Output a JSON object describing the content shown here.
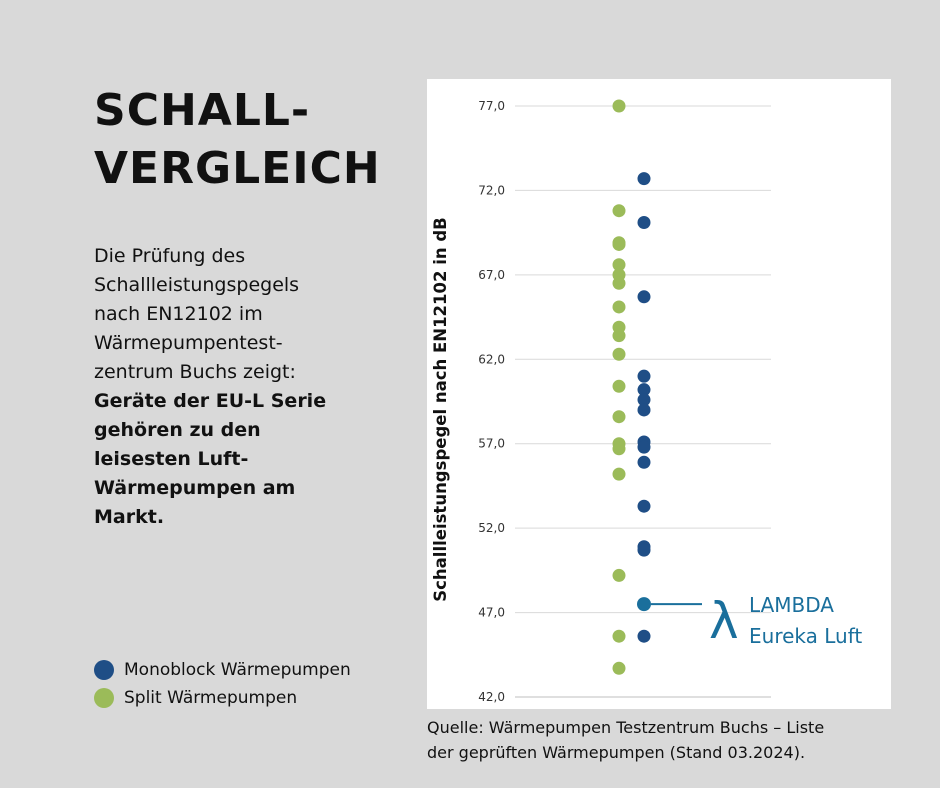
{
  "heading": {
    "line1": "SCHALL-",
    "line2": "VERGLEICH"
  },
  "description": {
    "lines": [
      "Die Prüfung des",
      "Schallleistungspegels",
      "nach EN12102 im",
      "Wärmepumpentest-",
      "zentrum Buchs zeigt:"
    ],
    "bold_lines": [
      "Geräte der EU-L Serie",
      "gehören zu den",
      "leisesten Luft-",
      "Wärmepumpen am",
      "Markt."
    ]
  },
  "legend": {
    "items": [
      {
        "label": "Monoblock Wärmepumpen",
        "color": "#1f4e86"
      },
      {
        "label": "Split Wärmepumpen",
        "color": "#9bbb59"
      }
    ]
  },
  "source": {
    "line1": "Quelle: Wärmepumpen Testzentrum Buchs – Liste",
    "line2": "der geprüften Wärmepumpen (Stand 03.2024)."
  },
  "colors": {
    "monoblock": "#1f4e86",
    "split": "#9bbb59",
    "highlight": "#1a6f9c",
    "background": "#d9d9d9"
  },
  "chart_data": {
    "type": "scatter",
    "ylabel": "Schallleistungspegel nach EN12102 in dB",
    "xlabel": "",
    "ylim": [
      42,
      77
    ],
    "yticks": [
      "42,0",
      "47,0",
      "52,0",
      "57,0",
      "62,0",
      "67,0",
      "72,0",
      "77,0"
    ],
    "grid": true,
    "series": [
      {
        "name": "Split Wärmepumpen",
        "values": [
          77.0,
          70.8,
          68.9,
          68.8,
          67.6,
          67.0,
          66.5,
          65.1,
          63.9,
          63.4,
          62.3,
          60.4,
          58.6,
          57.0,
          56.7,
          55.2,
          49.2,
          45.6,
          43.7
        ]
      },
      {
        "name": "Monoblock Wärmepumpen",
        "values": [
          72.7,
          70.1,
          65.7,
          61.0,
          60.2,
          59.6,
          59.0,
          57.1,
          56.8,
          55.9,
          53.3,
          50.9,
          50.7,
          45.6
        ]
      }
    ],
    "highlight": {
      "value": 47.5,
      "label_line1": "LAMBDA",
      "label_line2": "Eureka Luft",
      "symbol": "λ"
    }
  }
}
